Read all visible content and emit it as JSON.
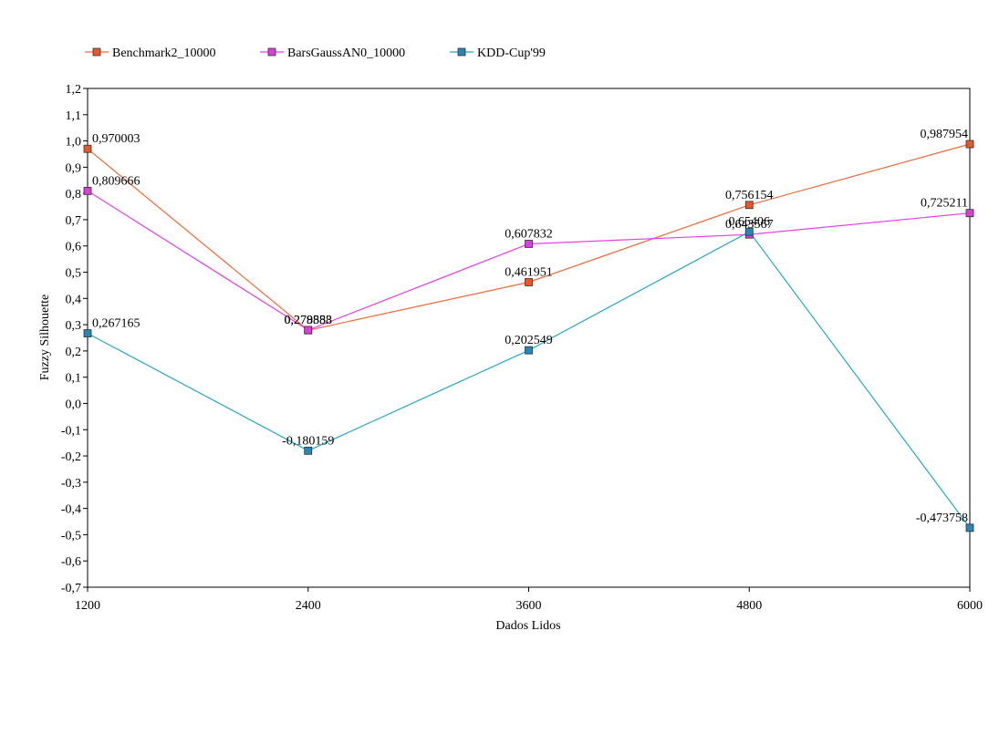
{
  "chart_data": {
    "type": "line",
    "title": "",
    "xlabel": "Dados Lidos",
    "ylabel": "Fuzzy Silhouette",
    "x": [
      1200,
      2400,
      3600,
      4800,
      6000
    ],
    "x_tick_labels": [
      "1200",
      "2400",
      "3600",
      "4800",
      "6000"
    ],
    "ylim": [
      -0.7,
      1.2
    ],
    "y_tick_labels": [
      "1,2",
      "1,1",
      "1,0",
      "0,9",
      "0,8",
      "0,7",
      "0,6",
      "0,5",
      "0,4",
      "0,3",
      "0,2",
      "0,1",
      "0,0",
      "-0,1",
      "-0,2",
      "-0,3",
      "-0,4",
      "-0,5",
      "-0,6",
      "-0,7"
    ],
    "grid": false,
    "legend_position": "top-left",
    "series": [
      {
        "name": "Benchmark2_10000",
        "color": "#f26a3b",
        "marker_color": "#e8562a",
        "values": [
          0.970003,
          0.278858,
          0.461951,
          0.756154,
          0.987954
        ],
        "labels": [
          "0,970003",
          "0,278858",
          "0,461951",
          "0,756154",
          "0,987954"
        ]
      },
      {
        "name": "BarsGaussAN0_10000",
        "color": "#e63fe6",
        "marker_color": "#d93fd9",
        "values": [
          0.809666,
          0.279583,
          0.607832,
          0.643567,
          0.725211
        ],
        "labels": [
          "0,809666",
          "0,279583",
          "0,607832",
          "0,643567",
          "0,725211"
        ]
      },
      {
        "name": "KDD-Cup'99",
        "color": "#27a7c7",
        "marker_color": "#2a86b5",
        "values": [
          0.267165,
          -0.180159,
          0.202549,
          0.65406,
          -0.473758
        ],
        "labels": [
          "0,267165",
          "-0,180159",
          "0,202549",
          "0,65406",
          "-0,473758"
        ]
      }
    ]
  }
}
